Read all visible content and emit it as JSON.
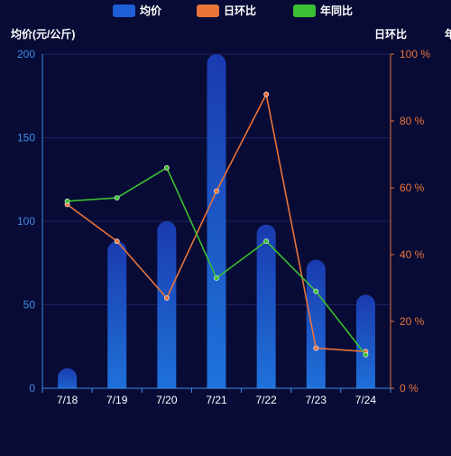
{
  "colors": {
    "background": "#080b35",
    "left_axis": "#3d8ee8",
    "right_axis": "#e8743a",
    "grid": "#1c2260",
    "bar_top": "#1a3bb0",
    "bar_bottom": "#1f74db",
    "line_ring": "#e8743a",
    "line_yoy": "#3cbf32",
    "text": "#ffffff"
  },
  "legend": [
    {
      "label": "均价",
      "color": "#1f5fd6",
      "series": "price"
    },
    {
      "label": "日环比",
      "color": "#e8743a",
      "series": "ring"
    },
    {
      "label": "年同比",
      "color": "#3cbf32",
      "series": "yoy"
    }
  ],
  "chart_data": {
    "type": "bar",
    "categories": [
      "7/18",
      "7/19",
      "7/20",
      "7/21",
      "7/22",
      "7/23",
      "7/24"
    ],
    "series": [
      {
        "name": "均价",
        "type": "bar",
        "axis": "left",
        "values": [
          12,
          88,
          100,
          200,
          98,
          77,
          56
        ]
      },
      {
        "name": "日环比",
        "type": "line",
        "axis": "right",
        "values": [
          55,
          44,
          27,
          59,
          88,
          12,
          11
        ]
      },
      {
        "name": "年同比",
        "type": "line",
        "axis": "right",
        "values": [
          56,
          57,
          66,
          33,
          44,
          29,
          10
        ]
      }
    ],
    "ylabel": "均价(元/公斤)",
    "ylabel_right": "日环比",
    "ylabel_right2": "年",
    "ylim": [
      0,
      200
    ],
    "ylim_right": [
      0,
      100
    ],
    "yticks": [
      0,
      50,
      100,
      150,
      200
    ],
    "yticks_right": [
      0,
      20,
      40,
      60,
      80,
      100
    ],
    "right_tick_suffix": " %",
    "grid": true,
    "legend_position": "top-center"
  }
}
